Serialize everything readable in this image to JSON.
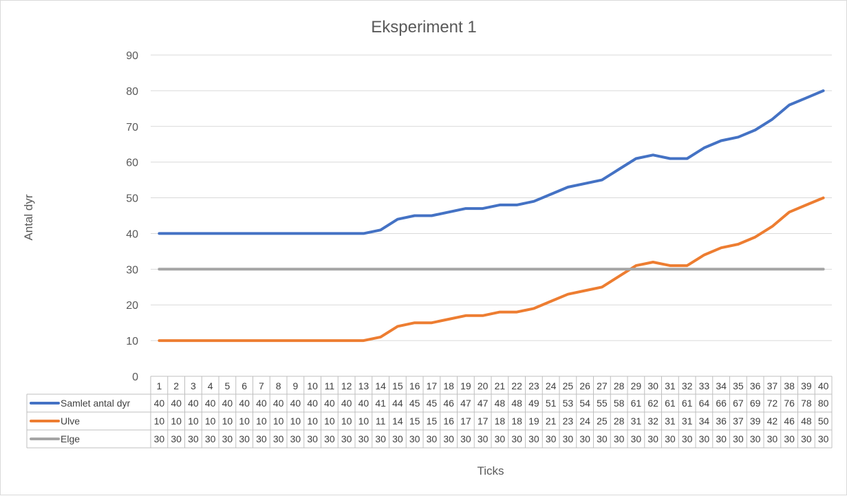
{
  "chart_data": {
    "type": "line",
    "title": "Eksperiment 1",
    "xlabel": "Ticks",
    "ylabel": "Antal dyr",
    "ylim": [
      0,
      90
    ],
    "y_ticks": [
      0,
      10,
      20,
      30,
      40,
      50,
      60,
      70,
      80,
      90
    ],
    "grid": "horizontal",
    "legend": "data table below chart",
    "x": [
      1,
      2,
      3,
      4,
      5,
      6,
      7,
      8,
      9,
      10,
      11,
      12,
      13,
      14,
      15,
      16,
      17,
      18,
      19,
      20,
      21,
      22,
      23,
      24,
      25,
      26,
      27,
      28,
      29,
      30,
      31,
      32,
      33,
      34,
      35,
      36,
      37,
      38,
      39,
      40
    ],
    "series": [
      {
        "name": "Samlet antal dyr",
        "color": "#4472c4",
        "values": [
          40,
          40,
          40,
          40,
          40,
          40,
          40,
          40,
          40,
          40,
          40,
          40,
          40,
          41,
          44,
          45,
          45,
          46,
          47,
          47,
          48,
          48,
          49,
          51,
          53,
          54,
          55,
          58,
          61,
          62,
          61,
          61,
          64,
          66,
          67,
          69,
          72,
          76,
          78,
          80
        ]
      },
      {
        "name": "Ulve",
        "color": "#ed7d31",
        "values": [
          10,
          10,
          10,
          10,
          10,
          10,
          10,
          10,
          10,
          10,
          10,
          10,
          10,
          11,
          14,
          15,
          15,
          16,
          17,
          17,
          18,
          18,
          19,
          21,
          23,
          24,
          25,
          28,
          31,
          32,
          31,
          31,
          34,
          36,
          37,
          39,
          42,
          46,
          48,
          50
        ]
      },
      {
        "name": "Elge",
        "color": "#a5a5a5",
        "values": [
          30,
          30,
          30,
          30,
          30,
          30,
          30,
          30,
          30,
          30,
          30,
          30,
          30,
          30,
          30,
          30,
          30,
          30,
          30,
          30,
          30,
          30,
          30,
          30,
          30,
          30,
          30,
          30,
          30,
          30,
          30,
          30,
          30,
          30,
          30,
          30,
          30,
          30,
          30,
          30
        ]
      }
    ]
  },
  "colors": {
    "gridline": "#d9d9d9",
    "table_border": "#bfbfbf",
    "text": "#595959"
  }
}
